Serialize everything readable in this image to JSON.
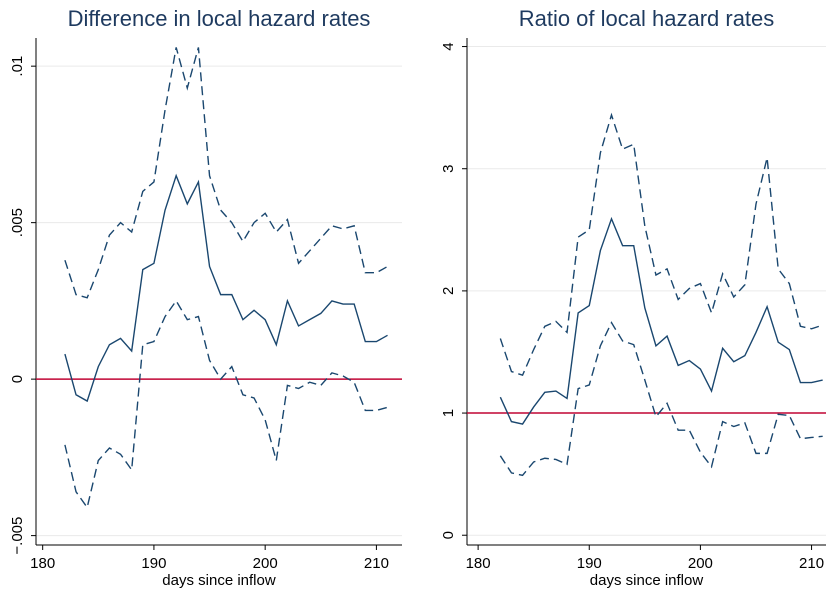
{
  "chart_data": [
    {
      "type": "line",
      "title": "Difference in local hazard rates",
      "xlabel": "days since inflow",
      "x": [
        182,
        183,
        184,
        185,
        186,
        187,
        188,
        189,
        190,
        191,
        192,
        193,
        194,
        195,
        196,
        197,
        198,
        199,
        200,
        201,
        202,
        203,
        204,
        205,
        206,
        207,
        208,
        209,
        210,
        211
      ],
      "series": [
        {
          "color": "#1a476f",
          "style": "solid",
          "values": [
            0.0008,
            -0.0005,
            -0.0007,
            0.0004,
            0.0011,
            0.0013,
            0.0009,
            0.0035,
            0.0037,
            0.0054,
            0.0065,
            0.0056,
            0.0063,
            0.0036,
            0.0027,
            0.0027,
            0.0019,
            0.0022,
            0.0019,
            0.0011,
            0.0025,
            0.0017,
            0.0019,
            0.0021,
            0.0025,
            0.0024,
            0.0024,
            0.0012,
            0.0012,
            0.0014
          ]
        },
        {
          "color": "#1a476f",
          "style": "dashed",
          "values": [
            0.0038,
            0.0027,
            0.0026,
            0.0035,
            0.0046,
            0.005,
            0.0047,
            0.006,
            0.0063,
            0.0086,
            0.0106,
            0.0093,
            0.0106,
            0.0065,
            0.0054,
            0.005,
            0.0044,
            0.005,
            0.0053,
            0.0047,
            0.0051,
            0.0037,
            0.0041,
            0.0045,
            0.0049,
            0.0048,
            0.0049,
            0.0034,
            0.0034,
            0.0036
          ]
        },
        {
          "color": "#1a476f",
          "style": "dashed",
          "values": [
            -0.0021,
            -0.0036,
            -0.0041,
            -0.0026,
            -0.0022,
            -0.0024,
            -0.0029,
            0.0011,
            0.0012,
            0.002,
            0.0025,
            0.0019,
            0.002,
            0.0006,
            0.0,
            0.0004,
            -0.0005,
            -0.0006,
            -0.0013,
            -0.0026,
            -0.0002,
            -0.0003,
            -0.0001,
            -0.0002,
            0.0002,
            0.0001,
            -0.0001,
            -0.001,
            -0.001,
            -0.0009
          ]
        }
      ],
      "reference_line": {
        "value": 0,
        "color": "#c10534"
      },
      "xlim": [
        179.4,
        212.3
      ],
      "xticks": [
        180,
        190,
        200,
        210
      ],
      "ylim": [
        -0.0053,
        0.0109
      ],
      "yticks": [
        {
          "value": -0.005,
          "label": "−.005"
        },
        0,
        {
          "value": 0.005,
          "label": ".005"
        },
        {
          "value": 0.01,
          "label": ".01"
        }
      ],
      "grid": true
    },
    {
      "type": "line",
      "title": "Ratio of local hazard rates",
      "xlabel": "days since inflow",
      "x": [
        182,
        183,
        184,
        185,
        186,
        187,
        188,
        189,
        190,
        191,
        192,
        193,
        194,
        195,
        196,
        197,
        198,
        199,
        200,
        201,
        202,
        203,
        204,
        205,
        206,
        207,
        208,
        209,
        210,
        211
      ],
      "series": [
        {
          "color": "#1a476f",
          "style": "solid",
          "values": [
            1.13,
            0.93,
            0.91,
            1.05,
            1.17,
            1.18,
            1.12,
            1.82,
            1.88,
            2.33,
            2.59,
            2.37,
            2.37,
            1.86,
            1.55,
            1.63,
            1.39,
            1.43,
            1.36,
            1.18,
            1.53,
            1.42,
            1.47,
            1.66,
            1.87,
            1.58,
            1.52,
            1.25,
            1.25,
            1.27
          ]
        },
        {
          "color": "#1a476f",
          "style": "dashed",
          "values": [
            1.61,
            1.34,
            1.31,
            1.52,
            1.71,
            1.75,
            1.66,
            2.44,
            2.5,
            3.13,
            3.44,
            3.16,
            3.2,
            2.53,
            2.13,
            2.18,
            1.93,
            2.02,
            2.06,
            1.82,
            2.14,
            1.95,
            2.05,
            2.71,
            3.09,
            2.18,
            2.06,
            1.71,
            1.69,
            1.72
          ]
        },
        {
          "color": "#1a476f",
          "style": "dashed",
          "values": [
            0.65,
            0.51,
            0.49,
            0.6,
            0.63,
            0.62,
            0.58,
            1.2,
            1.23,
            1.55,
            1.74,
            1.59,
            1.56,
            1.27,
            0.97,
            1.08,
            0.86,
            0.86,
            0.68,
            0.56,
            0.93,
            0.89,
            0.92,
            0.67,
            0.67,
            0.99,
            0.98,
            0.79,
            0.8,
            0.81
          ]
        }
      ],
      "reference_line": {
        "value": 1,
        "color": "#c10534"
      },
      "xlim": [
        179.0,
        211.3
      ],
      "xticks": [
        180,
        190,
        200,
        210
      ],
      "ylim": [
        -0.08,
        4.07
      ],
      "yticks": [
        0,
        1,
        2,
        3,
        4
      ],
      "grid": true
    }
  ]
}
